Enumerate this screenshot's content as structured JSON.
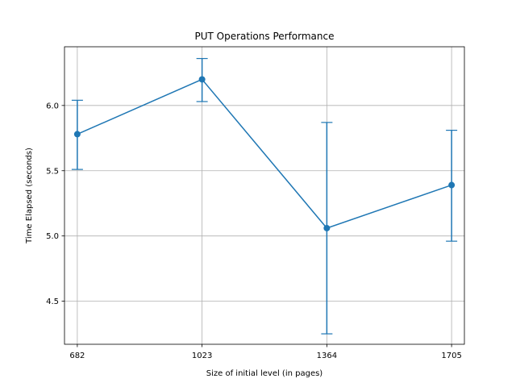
{
  "chart_data": {
    "type": "line",
    "title": "PUT Operations Performance",
    "xlabel": "Size of initial level (in pages)",
    "ylabel": "Time Elapsed (seconds)",
    "x": [
      682,
      1023,
      1364,
      1705
    ],
    "x_tick_labels": [
      "682",
      "1023",
      "1364",
      "1705"
    ],
    "xlim": [
      647,
      1740
    ],
    "series": [
      {
        "values": [
          5.78,
          6.2,
          5.06,
          5.39
        ],
        "error_low": [
          5.51,
          6.03,
          4.25,
          4.96
        ],
        "error_high": [
          6.04,
          6.36,
          5.87,
          5.81
        ],
        "color": "#1f77b4",
        "marker": "circle"
      }
    ],
    "y_ticks": [
      4.5,
      5.0,
      5.5,
      6.0
    ],
    "y_tick_labels": [
      "4.5",
      "5.0",
      "5.5",
      "6.0"
    ],
    "ylim": [
      4.17,
      6.45
    ],
    "grid": true,
    "legend": "none"
  }
}
